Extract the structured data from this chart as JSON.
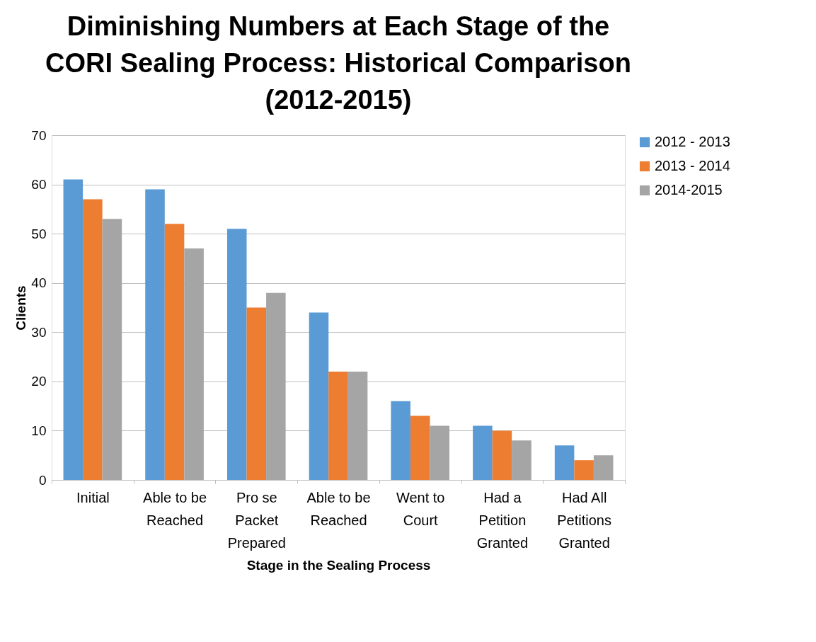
{
  "chart_data": {
    "type": "bar",
    "title": [
      "Diminishing Numbers at Each Stage of the",
      "CORI Sealing Process: Historical Comparison",
      "(2012-2015)"
    ],
    "xlabel": "Stage in the Sealing Process",
    "ylabel": "Clients",
    "categories": [
      "Initial",
      "Able to be Reached",
      "Pro se Packet Prepared",
      "Able to be Reached",
      "Went to Court",
      "Had a Petition Granted",
      "Had All Petitions Granted"
    ],
    "series": [
      {
        "name": "2012 - 2013",
        "color": "#5b9bd5",
        "values": [
          61,
          59,
          51,
          34,
          16,
          11,
          7
        ]
      },
      {
        "name": "2013 - 2014",
        "color": "#ed7d31",
        "values": [
          57,
          52,
          35,
          22,
          13,
          10,
          4
        ]
      },
      {
        "name": "2014-2015",
        "color": "#a5a5a5",
        "values": [
          53,
          47,
          38,
          22,
          11,
          8,
          5
        ]
      }
    ],
    "ylim": [
      0,
      70
    ],
    "yticks": [
      0,
      10,
      20,
      30,
      40,
      50,
      60,
      70
    ],
    "grid": "y",
    "legend": "right"
  }
}
